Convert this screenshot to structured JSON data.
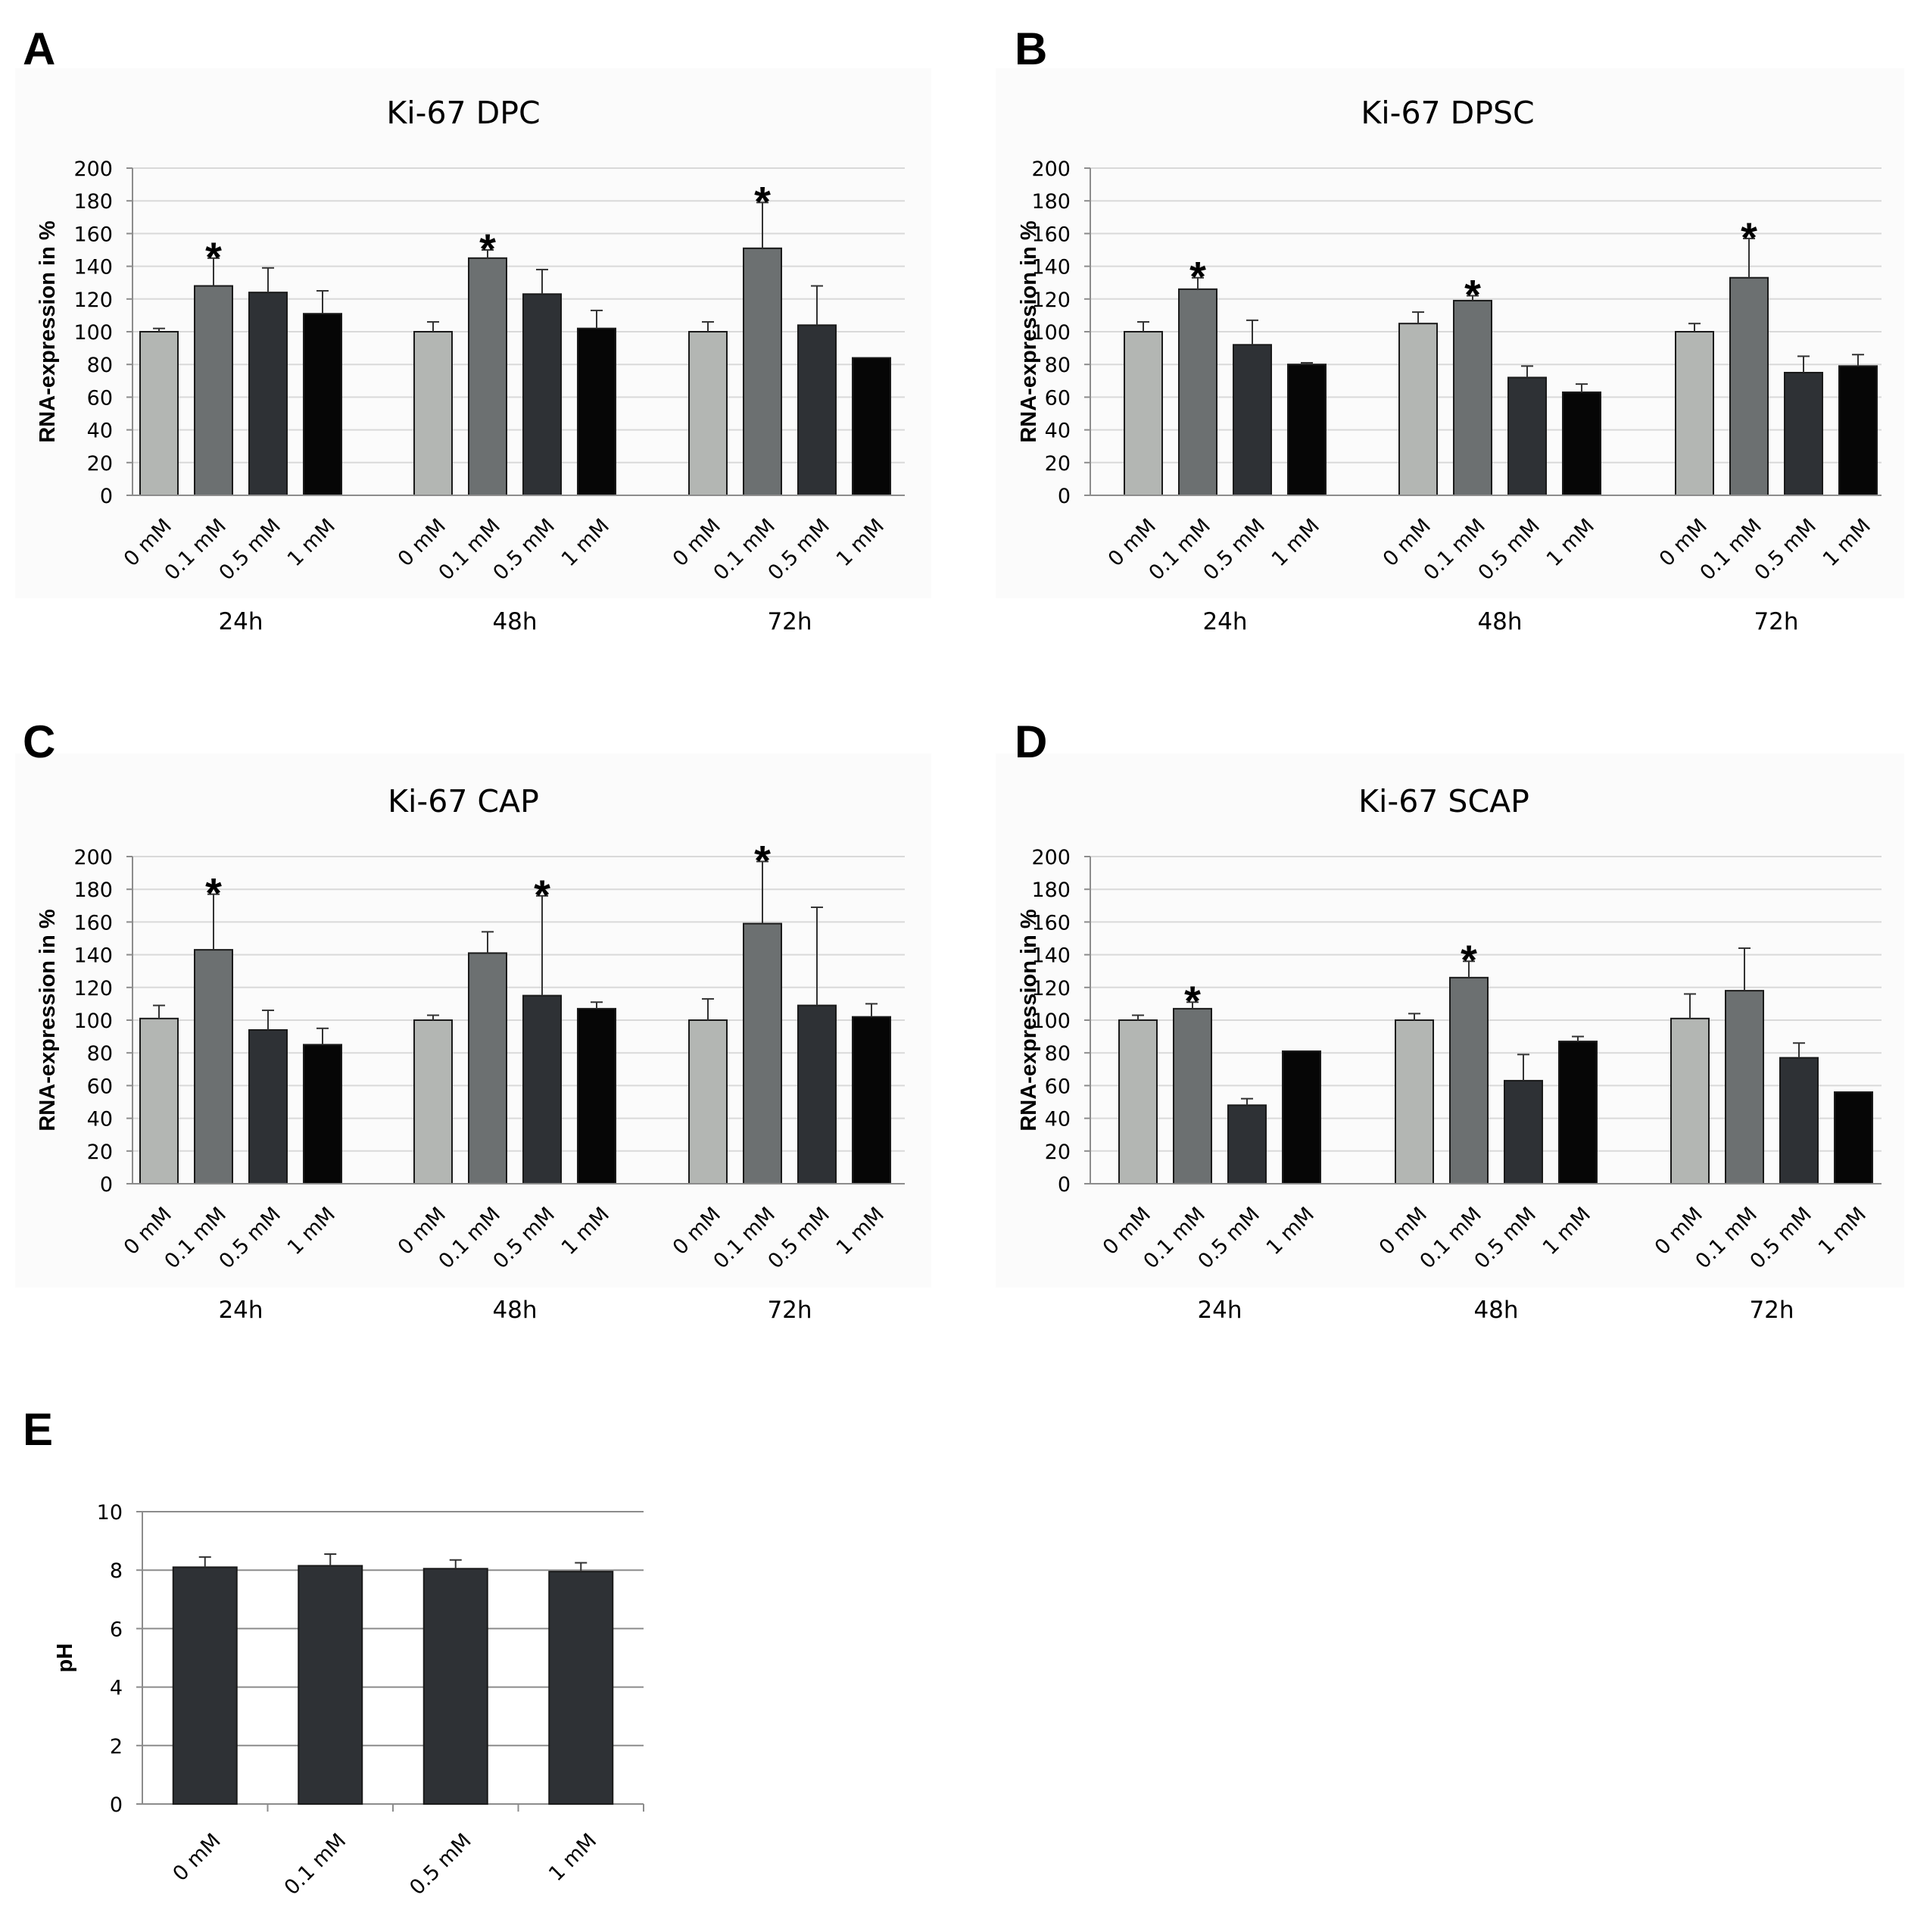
{
  "colors": {
    "bar_0mM": "#b3b6b3",
    "bar_0.1mM": "#6c7071",
    "bar_0.5mM": "#2e3135",
    "bar_1mM": "#060606",
    "grid": "#d9d9d9",
    "axis": "#8c8c8c",
    "panel_bg": "#fbfbfb"
  },
  "chart_data": [
    {
      "panel": "A",
      "type": "bar",
      "title": "Ki-67 DPC",
      "ylabel": "RNA-expression in %",
      "ylim": [
        0,
        200
      ],
      "yticks": [
        "0",
        "20",
        "40",
        "60",
        "80",
        "100",
        "120",
        "140",
        "160",
        "180",
        "200"
      ],
      "groups": [
        "24h",
        "48h",
        "72h"
      ],
      "categories": [
        "0 mM",
        "0.1 mM",
        "0.5 mM",
        "1 mM"
      ],
      "values": [
        [
          100,
          128,
          124,
          111
        ],
        [
          100,
          145,
          123,
          102
        ],
        [
          100,
          151,
          104,
          84
        ]
      ],
      "errors": [
        [
          2,
          17,
          15,
          14
        ],
        [
          6,
          5,
          15,
          11
        ],
        [
          6,
          28,
          24,
          0
        ]
      ],
      "significant": [
        [
          false,
          true,
          false,
          false
        ],
        [
          false,
          true,
          false,
          false
        ],
        [
          false,
          true,
          false,
          false
        ]
      ],
      "sig_marker": "*"
    },
    {
      "panel": "B",
      "type": "bar",
      "title": "Ki-67 DPSC",
      "ylabel": "RNA-expression in %",
      "ylim": [
        0,
        200
      ],
      "yticks": [
        "0",
        "20",
        "40",
        "60",
        "80",
        "100",
        "120",
        "140",
        "160",
        "180",
        "200"
      ],
      "groups": [
        "24h",
        "48h",
        "72h"
      ],
      "categories": [
        "0 mM",
        "0.1 mM",
        "0.5 mM",
        "1 mM"
      ],
      "values": [
        [
          100,
          126,
          92,
          80
        ],
        [
          105,
          119,
          72,
          63
        ],
        [
          100,
          133,
          75,
          79
        ]
      ],
      "errors": [
        [
          6,
          7,
          15,
          1
        ],
        [
          7,
          3,
          7,
          5
        ],
        [
          5,
          24,
          10,
          7
        ]
      ],
      "significant": [
        [
          false,
          true,
          false,
          false
        ],
        [
          false,
          true,
          false,
          false
        ],
        [
          false,
          true,
          false,
          false
        ]
      ],
      "sig_marker": "*"
    },
    {
      "panel": "C",
      "type": "bar",
      "title": "Ki-67 CAP",
      "ylabel": "RNA-expression in %",
      "ylim": [
        0,
        200
      ],
      "yticks": [
        "0",
        "20",
        "40",
        "60",
        "80",
        "100",
        "120",
        "140",
        "160",
        "180",
        "200"
      ],
      "groups": [
        "24h",
        "48h",
        "72h"
      ],
      "categories": [
        "0 mM",
        "0.1 mM",
        "0.5 mM",
        "1 mM"
      ],
      "values": [
        [
          101,
          143,
          94,
          85
        ],
        [
          100,
          141,
          115,
          107
        ],
        [
          100,
          159,
          109,
          102
        ]
      ],
      "errors": [
        [
          8,
          34,
          12,
          10
        ],
        [
          3,
          13,
          61,
          4
        ],
        [
          13,
          38,
          60,
          8
        ]
      ],
      "significant": [
        [
          false,
          true,
          false,
          false
        ],
        [
          false,
          false,
          true,
          false
        ],
        [
          false,
          true,
          false,
          false
        ]
      ],
      "sig_marker": "*"
    },
    {
      "panel": "D",
      "type": "bar",
      "title": "Ki-67 SCAP",
      "ylabel": "RNA-expression in %",
      "ylim": [
        0,
        200
      ],
      "yticks": [
        "0",
        "20",
        "40",
        "60",
        "80",
        "100",
        "120",
        "140",
        "160",
        "180",
        "200"
      ],
      "groups": [
        "24h",
        "48h",
        "72h"
      ],
      "categories": [
        "0 mM",
        "0.1 mM",
        "0.5 mM",
        "1 mM"
      ],
      "values": [
        [
          100,
          107,
          48,
          81
        ],
        [
          100,
          126,
          63,
          87
        ],
        [
          101,
          118,
          77,
          56
        ]
      ],
      "errors": [
        [
          3,
          4,
          4,
          0
        ],
        [
          4,
          10,
          16,
          3
        ],
        [
          15,
          26,
          9,
          0
        ]
      ],
      "significant": [
        [
          false,
          true,
          false,
          false
        ],
        [
          false,
          true,
          false,
          false
        ],
        [
          false,
          false,
          false,
          false
        ]
      ],
      "sig_marker": "*"
    },
    {
      "panel": "E",
      "type": "bar",
      "title": "",
      "ylabel": "pH",
      "ylim": [
        0,
        10
      ],
      "yticks": [
        "0",
        "2",
        "4",
        "6",
        "8",
        "10"
      ],
      "categories": [
        "0 mM",
        "0.1 mM",
        "0.5 mM",
        "1 mM"
      ],
      "values": [
        8.1,
        8.15,
        8.05,
        7.95
      ],
      "errors": [
        0.35,
        0.4,
        0.3,
        0.3
      ]
    }
  ]
}
